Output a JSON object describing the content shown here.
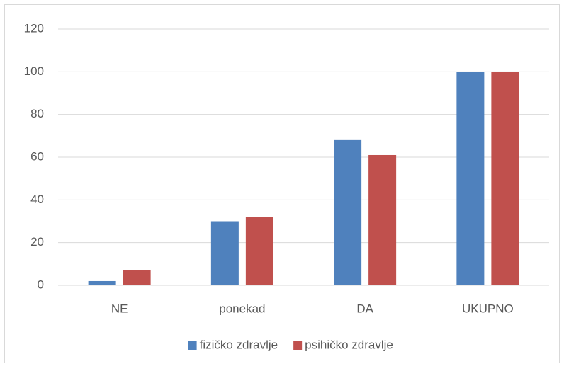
{
  "chart_data": {
    "type": "bar",
    "categories": [
      "NE",
      "ponekad",
      "DA",
      "UKUPNO"
    ],
    "series": [
      {
        "name": "fizičko zdravlje",
        "color": "#4f81bd",
        "values": [
          2,
          30,
          68,
          100
        ]
      },
      {
        "name": "psihičko zdravlje",
        "color": "#c0504d",
        "values": [
          7,
          32,
          61,
          100
        ]
      }
    ],
    "ylim": [
      0,
      120
    ],
    "yticks": [
      0,
      20,
      40,
      60,
      80,
      100,
      120
    ],
    "grid": true,
    "legend": "bottom"
  }
}
